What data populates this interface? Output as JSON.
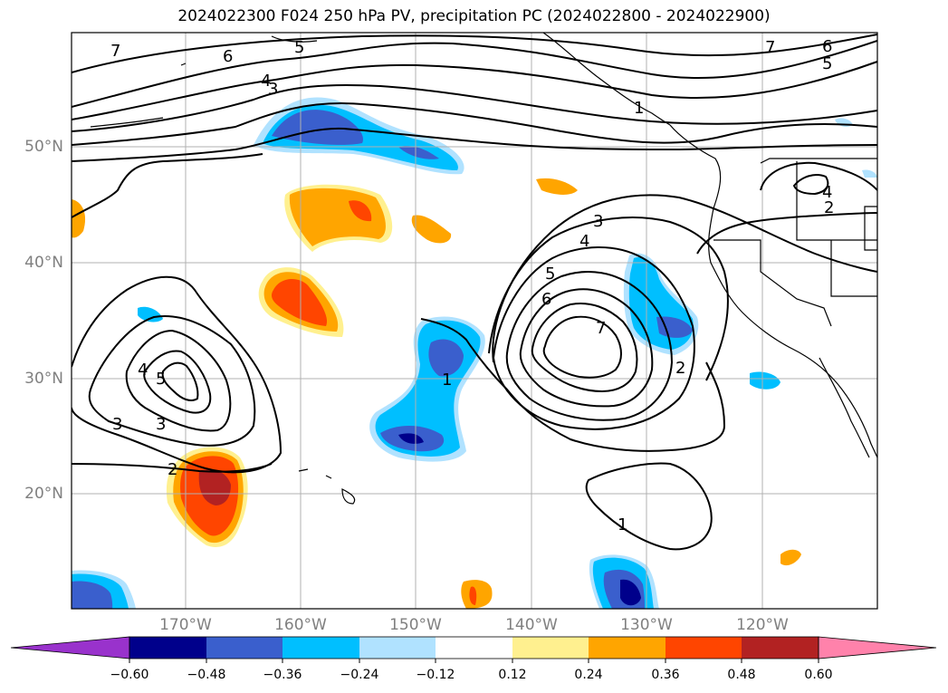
{
  "title": "2024022300 F024 250 hPa PV, precipitation PC (2024022800 - 2024022900)",
  "lat_labels": [
    "50°N",
    "40°N",
    "30°N",
    "20°N"
  ],
  "lon_labels": [
    "170°W",
    "160°W",
    "150°W",
    "140°W",
    "130°W",
    "120°W"
  ],
  "colorbar": {
    "ticks": [
      "−0.60",
      "−0.48",
      "−0.36",
      "−0.24",
      "−0.12",
      "0.12",
      "0.24",
      "0.36",
      "0.48",
      "0.60"
    ],
    "colors": [
      "#9932cc",
      "#00008b",
      "#3a5fcd",
      "#00bfff",
      "#b0e2ff",
      "#ffffff",
      "#fff08f",
      "#ffa500",
      "#ff4500",
      "#b22222",
      "#ff82ab"
    ]
  },
  "contour_labels": [
    "7",
    "6",
    "5",
    "4",
    "3",
    "2",
    "1",
    "7",
    "6",
    "5",
    "4",
    "3",
    "2",
    "1",
    "5",
    "4",
    "3",
    "2",
    "1",
    "7",
    "6",
    "5",
    "4",
    "3"
  ]
}
